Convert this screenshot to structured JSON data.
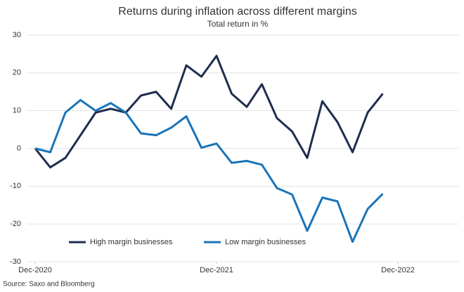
{
  "chart_data": {
    "type": "line",
    "title": "Returns during inflation across different margins",
    "subtitle": "Total return in %",
    "source": "Source: Saxo and Bloomberg",
    "x": [
      0,
      1,
      2,
      3,
      4,
      5,
      6,
      7,
      8,
      9,
      10,
      11,
      12,
      13,
      14,
      15,
      16,
      17,
      18,
      19,
      20,
      21,
      22,
      23
    ],
    "xlim": [
      0,
      28
    ],
    "xticks": [
      {
        "value": 0,
        "label": "Dec-2020"
      },
      {
        "value": 12,
        "label": "Dec-2021"
      },
      {
        "value": 24,
        "label": "Dec-2022"
      }
    ],
    "ylim": [
      -30,
      30
    ],
    "yticks": [
      -30,
      -20,
      -10,
      0,
      10,
      20,
      30
    ],
    "grid": true,
    "legend": "bottom-left",
    "series": [
      {
        "name": "High margin businesses",
        "color": "#1f2d4f",
        "values": [
          0,
          -5,
          -2.5,
          3.5,
          9.5,
          10.5,
          9.5,
          14,
          15,
          10.5,
          22,
          19,
          24.5,
          14.5,
          11,
          17,
          8,
          4.5,
          -2.5,
          12.5,
          7,
          -1,
          9.5,
          14.5
        ]
      },
      {
        "name": "Low margin businesses",
        "color": "#1a74b8",
        "values": [
          0,
          -1,
          9.5,
          12.8,
          10,
          12,
          9.5,
          4,
          3.5,
          5.5,
          8.5,
          0.2,
          1.3,
          -3.8,
          -3.3,
          -4.3,
          -10.5,
          -12.2,
          -21.8,
          -13,
          -14,
          -24.7,
          -16,
          -12
        ]
      }
    ]
  }
}
